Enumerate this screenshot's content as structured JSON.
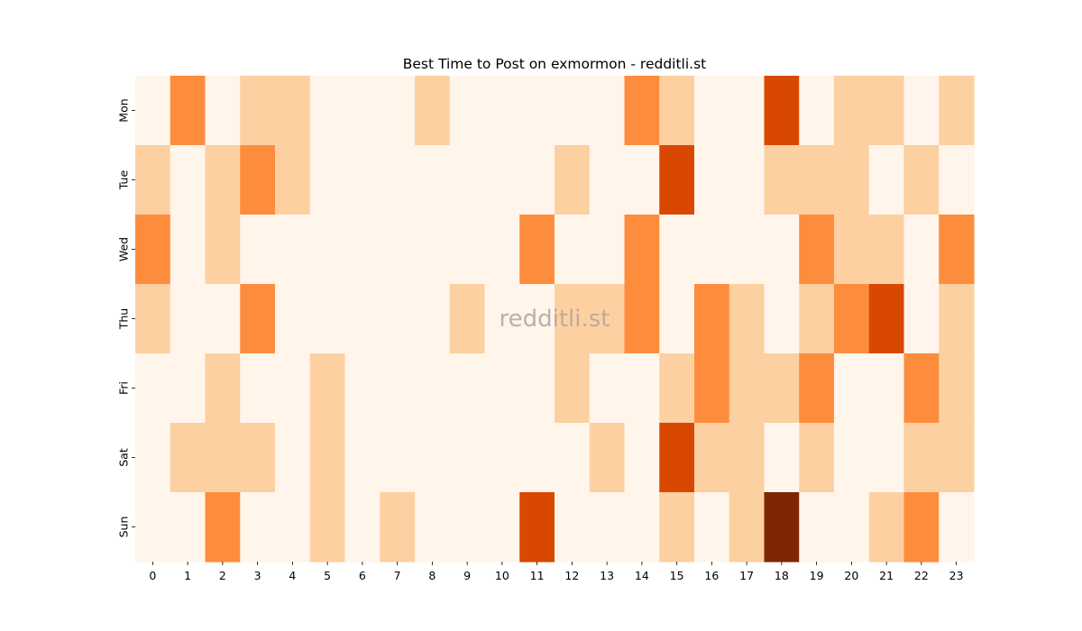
{
  "chart_data": {
    "type": "heatmap",
    "title": "Best Time to Post on exmormon - redditli.st",
    "watermark": "redditli.st",
    "x_categories": [
      "0",
      "1",
      "2",
      "3",
      "4",
      "5",
      "6",
      "7",
      "8",
      "9",
      "10",
      "11",
      "12",
      "13",
      "14",
      "15",
      "16",
      "17",
      "18",
      "19",
      "20",
      "21",
      "22",
      "23"
    ],
    "y_categories": [
      "Mon",
      "Tue",
      "Wed",
      "Thu",
      "Fri",
      "Sat",
      "Sun"
    ],
    "colormap": "Oranges",
    "level_colors": [
      "#fff5eb",
      "#fdd0a2",
      "#fd8d3c",
      "#d94801",
      "#7f2704"
    ],
    "values": [
      [
        0,
        2,
        0,
        1,
        1,
        0,
        0,
        0,
        1,
        0,
        0,
        0,
        0,
        0,
        2,
        1,
        0,
        0,
        3,
        0,
        1,
        1,
        0,
        1
      ],
      [
        1,
        0,
        1,
        2,
        1,
        0,
        0,
        0,
        0,
        0,
        0,
        0,
        1,
        0,
        0,
        3,
        0,
        0,
        1,
        1,
        1,
        0,
        1,
        0
      ],
      [
        2,
        0,
        1,
        0,
        0,
        0,
        0,
        0,
        0,
        0,
        0,
        2,
        0,
        0,
        2,
        0,
        0,
        0,
        0,
        2,
        1,
        1,
        0,
        2
      ],
      [
        1,
        0,
        0,
        2,
        0,
        0,
        0,
        0,
        0,
        1,
        0,
        0,
        1,
        1,
        2,
        0,
        2,
        1,
        0,
        1,
        2,
        3,
        0,
        1
      ],
      [
        0,
        0,
        1,
        0,
        0,
        1,
        0,
        0,
        0,
        0,
        0,
        0,
        1,
        0,
        0,
        1,
        2,
        1,
        1,
        2,
        0,
        0,
        2,
        1
      ],
      [
        0,
        1,
        1,
        1,
        0,
        1,
        0,
        0,
        0,
        0,
        0,
        0,
        0,
        1,
        0,
        3,
        1,
        1,
        0,
        1,
        0,
        0,
        1,
        1
      ],
      [
        0,
        0,
        2,
        0,
        0,
        1,
        0,
        1,
        0,
        0,
        0,
        3,
        0,
        0,
        0,
        1,
        0,
        1,
        4,
        0,
        0,
        1,
        2,
        0
      ]
    ],
    "xlabel": "",
    "ylabel": "",
    "colorbar": false
  }
}
